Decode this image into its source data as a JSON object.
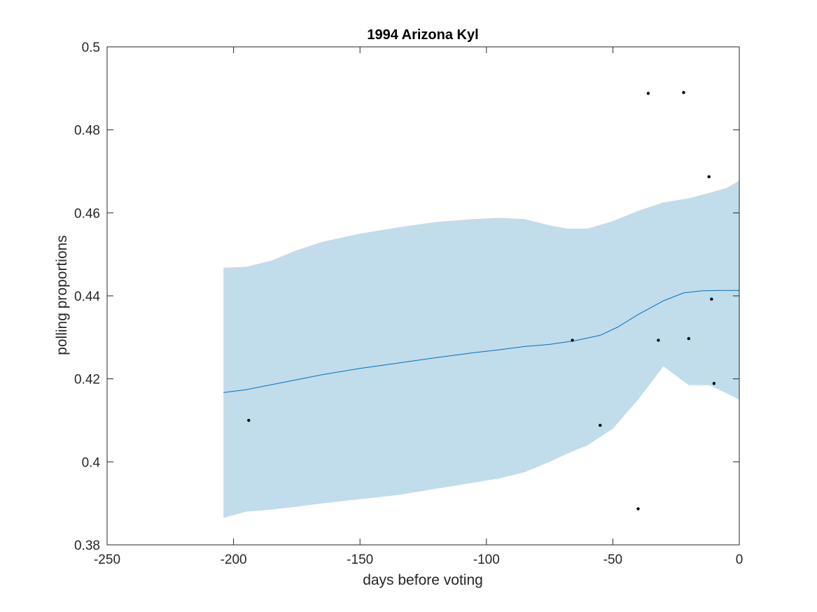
{
  "chart_data": {
    "type": "line",
    "title": "1994 Arizona Kyl",
    "xlabel": "days before voting",
    "ylabel": "polling proportions",
    "xlim": [
      -250,
      0
    ],
    "ylim": [
      0.38,
      0.5
    ],
    "xticks": [
      -250,
      -200,
      -150,
      -100,
      -50,
      0
    ],
    "yticks": [
      0.38,
      0.4,
      0.42,
      0.44,
      0.46,
      0.48,
      0.5
    ],
    "xtick_labels": [
      "-250",
      "-200",
      "-150",
      "-100",
      "-50",
      "0"
    ],
    "ytick_labels": [
      "0.38",
      "0.4",
      "0.42",
      "0.44",
      "0.46",
      "0.48",
      "0.5"
    ],
    "grid": false,
    "colors": {
      "band": "#c1dcea",
      "line": "#0072bd",
      "points": "#000000",
      "axes": "#262626"
    },
    "series": [
      {
        "kind": "band",
        "x": [
          -204,
          -195,
          -185,
          -175,
          -165,
          -150,
          -135,
          -120,
          -105,
          -95,
          -85,
          -75,
          -68,
          -60,
          -50,
          -40,
          -30,
          -20,
          -12,
          -5,
          0
        ],
        "lower": [
          0.3865,
          0.388,
          0.3885,
          0.3892,
          0.39,
          0.391,
          0.392,
          0.3935,
          0.395,
          0.396,
          0.3975,
          0.4,
          0.402,
          0.404,
          0.408,
          0.415,
          0.423,
          0.4185,
          0.4185,
          0.4165,
          0.415
        ],
        "upper": [
          0.4468,
          0.447,
          0.4485,
          0.451,
          0.453,
          0.455,
          0.4565,
          0.4578,
          0.4585,
          0.4588,
          0.4585,
          0.457,
          0.4562,
          0.4562,
          0.458,
          0.4605,
          0.4625,
          0.4635,
          0.4648,
          0.466,
          0.4678
        ]
      },
      {
        "kind": "line",
        "x": [
          -204,
          -195,
          -185,
          -175,
          -165,
          -150,
          -135,
          -120,
          -105,
          -95,
          -85,
          -75,
          -65,
          -55,
          -48,
          -40,
          -30,
          -22,
          -15,
          -8,
          0
        ],
        "y": [
          0.4167,
          0.4174,
          0.4186,
          0.4198,
          0.421,
          0.4225,
          0.4238,
          0.4251,
          0.4263,
          0.427,
          0.4278,
          0.4283,
          0.4292,
          0.4305,
          0.4325,
          0.4355,
          0.4388,
          0.4407,
          0.4412,
          0.4413,
          0.4413
        ]
      },
      {
        "kind": "scatter",
        "points": [
          {
            "x": -194,
            "y": 0.41
          },
          {
            "x": -66,
            "y": 0.4293
          },
          {
            "x": -55,
            "y": 0.4088
          },
          {
            "x": -40,
            "y": 0.3887
          },
          {
            "x": -36,
            "y": 0.4888
          },
          {
            "x": -32,
            "y": 0.4293
          },
          {
            "x": -22,
            "y": 0.489
          },
          {
            "x": -20,
            "y": 0.4297
          },
          {
            "x": -12,
            "y": 0.4687
          },
          {
            "x": -11,
            "y": 0.4392
          },
          {
            "x": -10,
            "y": 0.4189
          }
        ]
      }
    ]
  }
}
